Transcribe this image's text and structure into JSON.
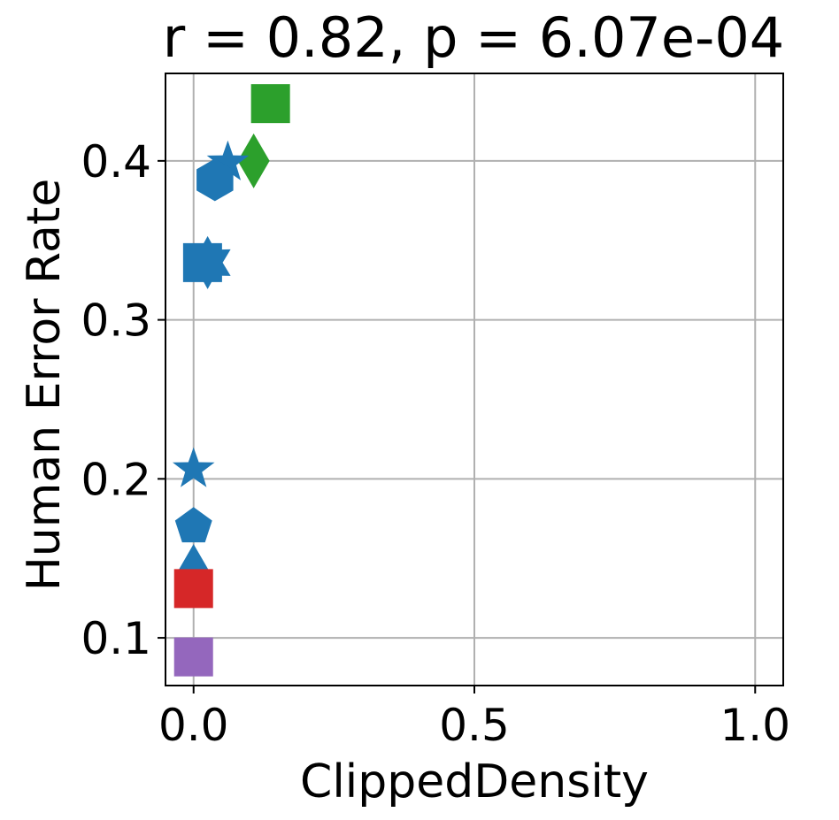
{
  "chart_data": {
    "type": "scatter",
    "title": "r = 0.82, p = 6.07e-04",
    "xlabel": "ClippedDensity",
    "ylabel": "Human Error Rate",
    "xlim": [
      -0.05,
      1.05
    ],
    "ylim": [
      0.07,
      0.455
    ],
    "xticks": [
      0.0,
      0.5,
      1.0
    ],
    "xtick_labels": [
      "0.0",
      "0.5",
      "1.0"
    ],
    "yticks": [
      0.1,
      0.2,
      0.3,
      0.4
    ],
    "ytick_labels": [
      "0.1",
      "0.2",
      "0.3",
      "0.4"
    ],
    "grid": true,
    "legend": null,
    "points": [
      {
        "x": 0.137,
        "y": 0.436,
        "marker": "square",
        "color": "#2ca02c"
      },
      {
        "x": 0.107,
        "y": 0.4,
        "marker": "diamond",
        "color": "#2ca02c"
      },
      {
        "x": 0.061,
        "y": 0.399,
        "marker": "star",
        "color": "#1f77b4"
      },
      {
        "x": 0.038,
        "y": 0.388,
        "marker": "hexagon",
        "color": "#1f77b4"
      },
      {
        "x": 0.025,
        "y": 0.336,
        "marker": "star6",
        "color": "#1f77b4"
      },
      {
        "x": 0.016,
        "y": 0.336,
        "marker": "square",
        "color": "#1f77b4"
      },
      {
        "x": 0.0,
        "y": 0.206,
        "marker": "star",
        "color": "#1f77b4"
      },
      {
        "x": 0.0,
        "y": 0.17,
        "marker": "pentagon",
        "color": "#1f77b4"
      },
      {
        "x": 0.0,
        "y": 0.149,
        "marker": "triangle",
        "color": "#1f77b4"
      },
      {
        "x": 0.0,
        "y": 0.131,
        "marker": "square",
        "color": "#d62728"
      },
      {
        "x": 0.0,
        "y": 0.088,
        "marker": "square",
        "color": "#9467bd"
      }
    ]
  },
  "colors": {
    "blue": "#1f77b4",
    "green": "#2ca02c",
    "red": "#d62728",
    "purple": "#9467bd",
    "grid": "#b0b0b0"
  }
}
